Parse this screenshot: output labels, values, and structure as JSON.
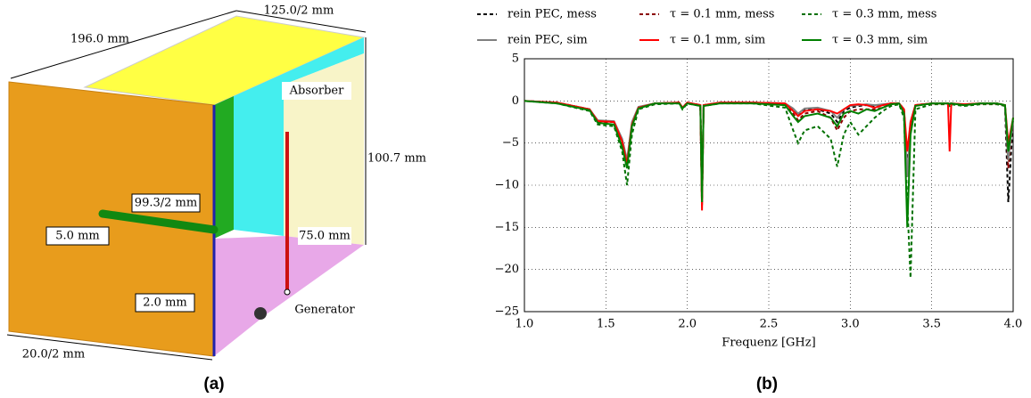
{
  "diagram": {
    "labels": [
      "125.0/2 mm",
      "196.0 mm",
      "Absorber",
      "100.7 mm",
      "99.3/2 mm",
      "5.0 mm",
      "75.0 mm",
      "2.0 mm",
      "Generator",
      "20.0/2 mm"
    ]
  },
  "captions": [
    "(a)",
    "(b)"
  ],
  "chart_data": {
    "type": "line",
    "xlabel": "Frequenz [GHz]",
    "x": [
      1.0,
      1.2,
      1.4,
      1.45,
      1.55,
      1.6,
      1.63,
      1.66,
      1.7,
      1.8,
      1.95,
      1.97,
      2.0,
      2.08,
      2.09,
      2.1,
      2.2,
      2.4,
      2.6,
      2.65,
      2.68,
      2.72,
      2.8,
      2.88,
      2.92,
      2.96,
      3.0,
      3.05,
      3.1,
      3.15,
      3.2,
      3.25,
      3.3,
      3.33,
      3.35,
      3.37,
      3.4,
      3.5,
      3.6,
      3.61,
      3.62,
      3.7,
      3.8,
      3.9,
      3.95,
      3.97,
      4.0
    ],
    "series": [
      {
        "name": "rein PEC, mess",
        "color": "#000000",
        "style": "dashed",
        "values": [
          0,
          -0.2,
          -1,
          -2.5,
          -2.5,
          -5,
          -7.5,
          -3,
          -0.8,
          -0.3,
          -0.2,
          -0.8,
          -0.2,
          -0.5,
          -12,
          -0.5,
          -0.2,
          -0.2,
          -0.3,
          -1,
          -1.8,
          -1,
          -1,
          -1.5,
          -2.5,
          -1.2,
          -0.8,
          -0.6,
          -0.5,
          -0.6,
          -0.5,
          -0.3,
          -0.3,
          -1,
          -8,
          -3,
          -0.5,
          -0.3,
          -0.3,
          -0.3,
          -0.3,
          -0.5,
          -0.3,
          -0.3,
          -0.5,
          -12,
          -2
        ]
      },
      {
        "name": "τ = 0.1 mm, mess",
        "color": "#8b0000",
        "style": "dashed",
        "values": [
          0,
          -0.2,
          -1,
          -2.5,
          -2.5,
          -5,
          -7.8,
          -3,
          -0.8,
          -0.3,
          -0.2,
          -0.8,
          -0.2,
          -0.5,
          -12.5,
          -0.5,
          -0.2,
          -0.2,
          -0.4,
          -1.5,
          -2.3,
          -1.5,
          -1.2,
          -2,
          -3.5,
          -2,
          -1.2,
          -1,
          -1,
          -1,
          -0.8,
          -0.4,
          -0.3,
          -1,
          -9,
          -3,
          -0.5,
          -0.3,
          -0.3,
          -0.5,
          -0.3,
          -0.5,
          -0.3,
          -0.3,
          -0.5,
          -8,
          -2
        ]
      },
      {
        "name": "τ = 0.3 mm, mess",
        "color": "#007000",
        "style": "dashed",
        "values": [
          0,
          -0.3,
          -1.2,
          -2.8,
          -3,
          -6,
          -10,
          -4,
          -1,
          -0.4,
          -0.3,
          -1,
          -0.3,
          -0.6,
          -10,
          -0.6,
          -0.3,
          -0.3,
          -0.8,
          -3.5,
          -5,
          -3.5,
          -3,
          -4.5,
          -7.8,
          -4,
          -2.5,
          -4,
          -3,
          -2,
          -1.2,
          -0.6,
          -0.4,
          -2,
          -12,
          -21,
          -1,
          -0.4,
          -0.4,
          -0.6,
          -0.4,
          -0.6,
          -0.4,
          -0.4,
          -0.6,
          -7,
          -2
        ]
      },
      {
        "name": "rein PEC, sim",
        "color": "#808080",
        "style": "solid",
        "values": [
          0,
          -0.2,
          -1,
          -2.3,
          -2.4,
          -4.5,
          -7,
          -2.5,
          -0.7,
          -0.3,
          -0.2,
          -0.8,
          -0.2,
          -0.5,
          -12,
          -0.5,
          -0.2,
          -0.2,
          -0.3,
          -0.9,
          -1.5,
          -0.9,
          -0.8,
          -1.2,
          -2,
          -1,
          -0.6,
          -0.5,
          -0.4,
          -0.5,
          -0.4,
          -0.3,
          -0.3,
          -1,
          -9,
          -2.5,
          -0.5,
          -0.3,
          -0.3,
          -0.3,
          -0.3,
          -0.4,
          -0.3,
          -0.3,
          -0.5,
          -7,
          -2
        ]
      },
      {
        "name": "τ = 0.1 mm, sim",
        "color": "#ff0000",
        "style": "solid",
        "values": [
          0,
          -0.2,
          -1,
          -2.4,
          -2.5,
          -4.8,
          -7.5,
          -2.8,
          -0.8,
          -0.3,
          -0.2,
          -0.8,
          -0.2,
          -0.5,
          -13,
          -0.5,
          -0.2,
          -0.2,
          -0.3,
          -1.2,
          -1.8,
          -1.2,
          -1,
          -1.2,
          -1.5,
          -1,
          -0.5,
          -0.4,
          -0.5,
          -0.8,
          -0.5,
          -0.3,
          -0.3,
          -1,
          -6,
          -2.5,
          -0.5,
          -0.3,
          -0.3,
          -6,
          -0.3,
          -0.4,
          -0.3,
          -0.3,
          -0.5,
          -5,
          -2
        ]
      },
      {
        "name": "τ = 0.3 mm, sim",
        "color": "#008000",
        "style": "solid",
        "values": [
          0,
          -0.3,
          -1.1,
          -2.6,
          -2.8,
          -5.5,
          -8,
          -3,
          -0.9,
          -0.3,
          -0.3,
          -0.9,
          -0.3,
          -0.6,
          -12,
          -0.6,
          -0.3,
          -0.3,
          -0.5,
          -1.8,
          -2.5,
          -1.8,
          -1.5,
          -2,
          -3,
          -1.5,
          -1.2,
          -1.5,
          -1,
          -1.2,
          -0.8,
          -0.4,
          -0.3,
          -1.5,
          -15,
          -4,
          -0.6,
          -0.3,
          -0.3,
          -0.4,
          -0.3,
          -0.5,
          -0.3,
          -0.3,
          -0.5,
          -6,
          -2
        ]
      }
    ],
    "xlim": [
      1.0,
      4.0
    ],
    "xticks": [
      {
        "value": 1.0,
        "label": "1.0"
      },
      1.5,
      {
        "value": 2.0,
        "label": "2.0"
      },
      2.5,
      {
        "value": 3.0,
        "label": "3.0"
      },
      3.5,
      {
        "value": 4.0,
        "label": "4.0"
      }
    ],
    "ylim": [
      -25,
      5
    ],
    "yticks": [
      5,
      0,
      {
        "value": -5,
        "label": "−5"
      },
      {
        "value": -10,
        "label": "−10"
      },
      {
        "value": -15,
        "label": "−15"
      },
      {
        "value": -20,
        "label": "−20"
      },
      {
        "value": -25,
        "label": "−25"
      }
    ],
    "grid": true
  }
}
